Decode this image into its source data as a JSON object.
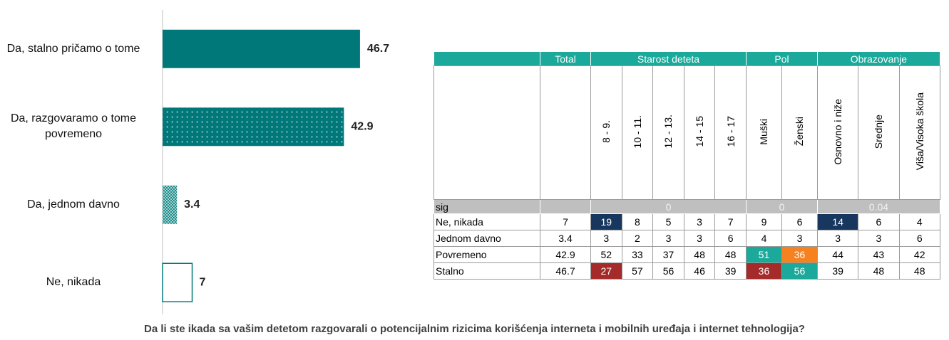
{
  "chart_data": {
    "type": "bar",
    "orientation": "horizontal",
    "title": "Da li ste ikada sa vašim detetom razgovarali o potencijalnim rizicima korišćenja interneta i mobilnih uređaja i internet tehnologija?",
    "categories": [
      "Da, stalno pričamo o tome",
      "Da, razgovaramo o tome povremeno",
      "Da, jednom davno",
      "Ne, nikada"
    ],
    "values": [
      46.7,
      42.9,
      3.4,
      7
    ],
    "color": "#00787a",
    "fills": [
      "solid",
      "dots",
      "crosshatch",
      "outline"
    ]
  },
  "table": {
    "groups": [
      {
        "label": "Total",
        "span": 1
      },
      {
        "label": "Starost deteta",
        "span": 5
      },
      {
        "label": "Pol",
        "span": 2
      },
      {
        "label": "Obrazovanje",
        "span": 3
      }
    ],
    "columns": [
      "8 - 9.",
      "10 - 11.",
      "12 - 13.",
      "14 - 15",
      "16 - 17",
      "Muški",
      "Ženski",
      "Osnovno i niže",
      "Srednje",
      "Viša/Visoka škola"
    ],
    "sig": {
      "label": "sig",
      "values": [
        0,
        0,
        0.04
      ]
    },
    "rows": [
      {
        "label": "Ne, nikada",
        "values": [
          7,
          19,
          8,
          5,
          3,
          7,
          9,
          6,
          14,
          6,
          4
        ],
        "colors": [
          null,
          "#17375e",
          null,
          null,
          null,
          null,
          null,
          null,
          "#17375e",
          null,
          null
        ]
      },
      {
        "label": "Jednom davno",
        "values": [
          3.4,
          3,
          2,
          3,
          3,
          6,
          4,
          3,
          3,
          3,
          6
        ],
        "colors": [
          null,
          null,
          null,
          null,
          null,
          null,
          null,
          null,
          null,
          null,
          null
        ]
      },
      {
        "label": "Povremeno",
        "values": [
          42.9,
          52,
          33,
          37,
          48,
          48,
          51,
          36,
          44,
          43,
          42
        ],
        "colors": [
          null,
          null,
          null,
          null,
          null,
          null,
          "#1aa99a",
          "#f5821f",
          null,
          null,
          null
        ]
      },
      {
        "label": "Stalno",
        "values": [
          46.7,
          27,
          57,
          56,
          46,
          39,
          36,
          56,
          39,
          48,
          48
        ],
        "colors": [
          null,
          "#a52a2a",
          null,
          null,
          null,
          null,
          "#a52a2a",
          "#1aa99a",
          null,
          null,
          null
        ]
      }
    ]
  }
}
